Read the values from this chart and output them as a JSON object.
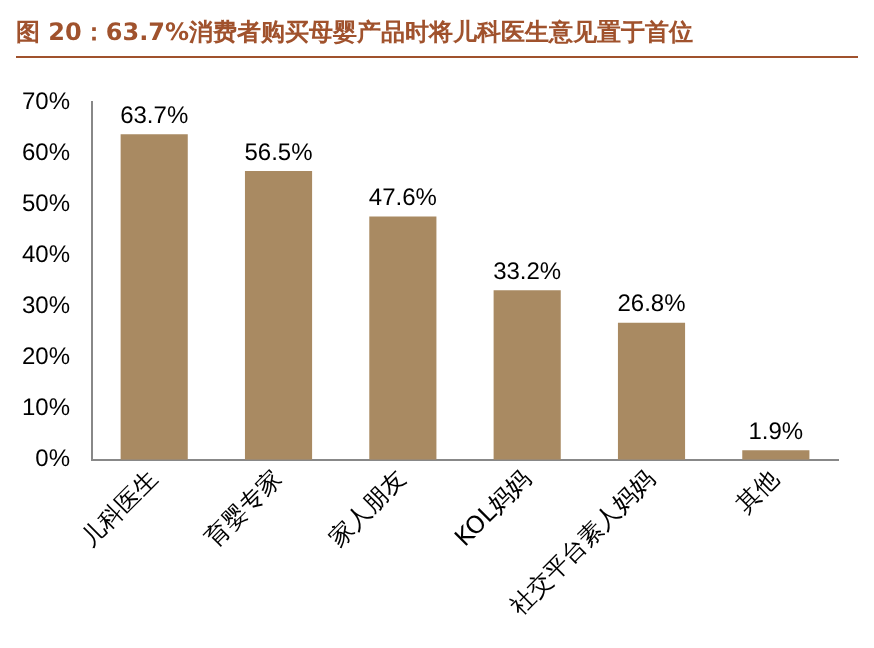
{
  "chart_data": {
    "type": "bar",
    "title": "图 20：63.7%消费者购买母婴产品时将儿科医生意见置于首位",
    "categories": [
      "儿科医生",
      "育婴专家",
      "家人朋友",
      "KOL妈妈",
      "社交平台素人妈妈",
      "其他"
    ],
    "values": [
      63.7,
      56.5,
      47.6,
      33.2,
      26.8,
      1.9
    ],
    "value_labels": [
      "63.7%",
      "56.5%",
      "47.6%",
      "33.2%",
      "26.8%",
      "1.9%"
    ],
    "color": "#a98a62",
    "ylim": [
      0,
      70
    ],
    "yticks": [
      {
        "value": 0,
        "label": "0%"
      },
      {
        "value": 10,
        "label": "10%"
      },
      {
        "value": 20,
        "label": "20%"
      },
      {
        "value": 30,
        "label": "30%"
      },
      {
        "value": 40,
        "label": "40%"
      },
      {
        "value": 50,
        "label": "50%"
      },
      {
        "value": 60,
        "label": "60%"
      },
      {
        "value": 70,
        "label": "70%"
      }
    ],
    "grid": false,
    "legend": false
  }
}
